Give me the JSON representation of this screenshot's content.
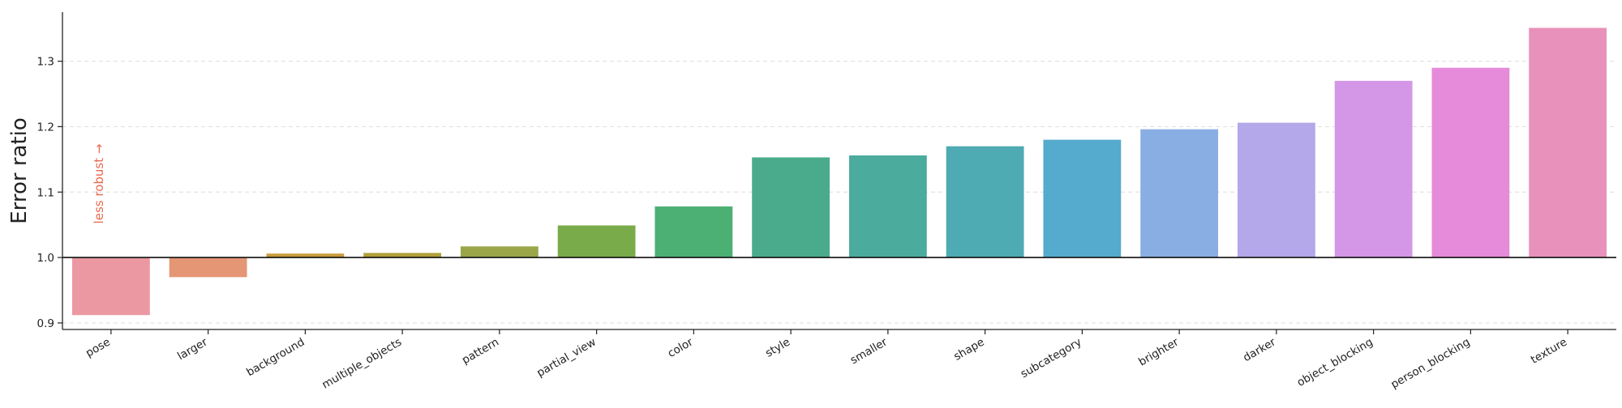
{
  "chart_data": {
    "type": "bar",
    "title": "",
    "xlabel": "",
    "ylabel": "Error ratio",
    "categories": [
      "pose",
      "larger",
      "background",
      "multiple_objects",
      "pattern",
      "partial_view",
      "color",
      "style",
      "smaller",
      "shape",
      "subcategory",
      "brighter",
      "darker",
      "object_blocking",
      "person_blocking",
      "texture"
    ],
    "values": [
      0.912,
      0.97,
      1.006,
      1.007,
      1.017,
      1.049,
      1.078,
      1.153,
      1.156,
      1.17,
      1.18,
      1.196,
      1.206,
      1.27,
      1.29,
      1.351
    ],
    "colors": [
      "#ec98a3",
      "#e59674",
      "#ca9c3e",
      "#b1a03c",
      "#9aa649",
      "#79ab4a",
      "#4caf74",
      "#4aab8c",
      "#4bab9d",
      "#4eaab3",
      "#54abcd",
      "#89aee3",
      "#b4a7ea",
      "#d497e7",
      "#e58bd9",
      "#e892bb"
    ],
    "ylim": [
      0.89,
      1.375
    ],
    "yticks": [
      "0.9",
      "1.0",
      "1.1",
      "1.2",
      "1.3"
    ],
    "baseline": 1.0,
    "grid": "y-dashed",
    "annotation": {
      "text": "less robust →",
      "color": "#e8694f"
    }
  }
}
